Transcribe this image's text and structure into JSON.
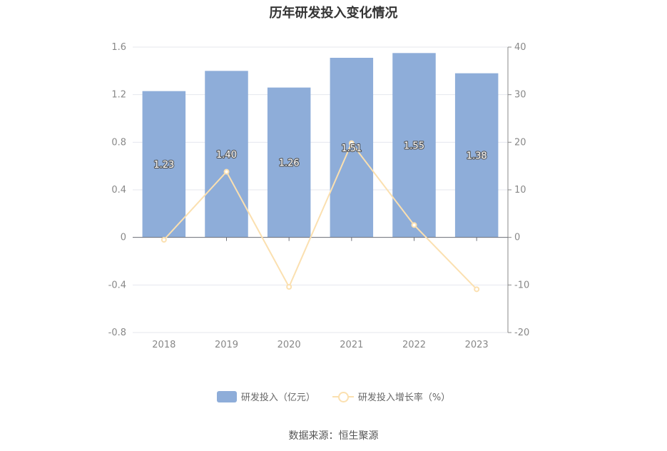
{
  "chart_data": {
    "type": "bar",
    "title": "历年研发投入变化情况",
    "categories": [
      "2018",
      "2019",
      "2020",
      "2021",
      "2022",
      "2023"
    ],
    "series": [
      {
        "name": "研发投入（亿元）",
        "type": "bar",
        "axis": "left",
        "values": [
          1.23,
          1.4,
          1.26,
          1.51,
          1.55,
          1.38
        ],
        "labels": [
          "1.23",
          "1.40",
          "1.26",
          "1.51",
          "1.55",
          "1.38"
        ],
        "color": "#8eadd9"
      },
      {
        "name": "研发投入增长率（%）",
        "type": "line",
        "axis": "right",
        "values": [
          -0.5,
          13.8,
          -10.4,
          19.8,
          2.6,
          -10.9
        ],
        "color": "#fbe0b0"
      }
    ],
    "y_left": {
      "ticks": [
        "1.6",
        "1.2",
        "0.8",
        "0.4",
        "0",
        "-0.4",
        "-0.8"
      ],
      "range": [
        -0.8,
        1.6
      ]
    },
    "y_right": {
      "ticks": [
        "40",
        "30",
        "20",
        "10",
        "0",
        "-10",
        "-20"
      ],
      "range": [
        -20,
        40
      ]
    },
    "grid": true,
    "legend_position": "bottom"
  },
  "source": "数据来源：恒生聚源"
}
